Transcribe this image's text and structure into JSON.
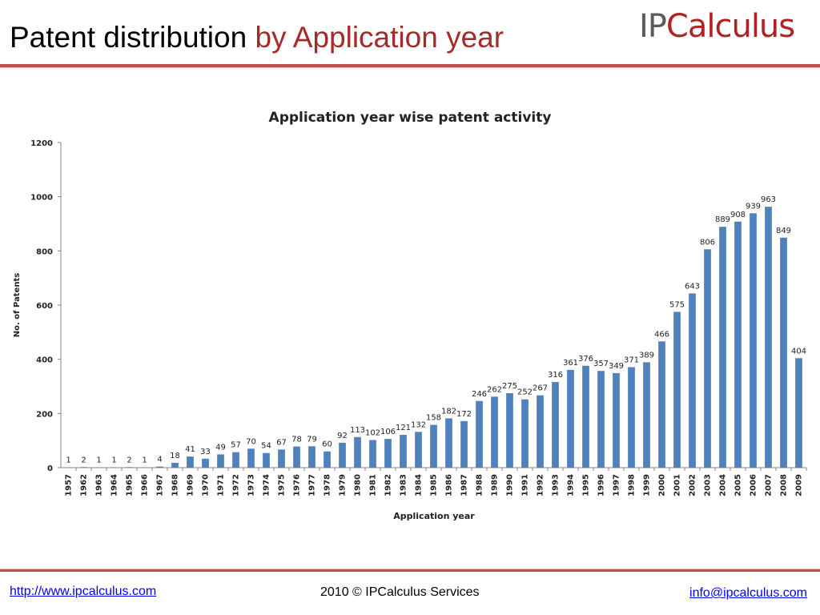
{
  "header": {
    "title_main": "Patent distribution",
    "title_accent": "by Application year",
    "logo_ip": "IP",
    "logo_rest": "Calculus"
  },
  "colors": {
    "accent": "#a52a2a",
    "rule": "#c0504d",
    "bar": "#4f81bd"
  },
  "chart_data": {
    "type": "bar",
    "title": "Application year wise patent activity",
    "xlabel": "Application year",
    "ylabel": "No. of Patents",
    "ylim": [
      0,
      1200
    ],
    "yticks": [
      0,
      200,
      400,
      600,
      800,
      1000,
      1200
    ],
    "grid": false,
    "categories": [
      "1957",
      "1962",
      "1963",
      "1964",
      "1965",
      "1966",
      "1967",
      "1968",
      "1969",
      "1970",
      "1971",
      "1972",
      "1973",
      "1974",
      "1975",
      "1976",
      "1977",
      "1978",
      "1979",
      "1980",
      "1981",
      "1982",
      "1983",
      "1984",
      "1985",
      "1986",
      "1987",
      "1988",
      "1989",
      "1990",
      "1991",
      "1992",
      "1993",
      "1994",
      "1995",
      "1996",
      "1997",
      "1998",
      "1999",
      "2000",
      "2001",
      "2002",
      "2003",
      "2004",
      "2005",
      "2006",
      "2007",
      "2008",
      "2009"
    ],
    "values": [
      1,
      2,
      1,
      1,
      2,
      1,
      4,
      18,
      41,
      33,
      49,
      57,
      70,
      54,
      67,
      78,
      79,
      60,
      92,
      113,
      102,
      106,
      121,
      132,
      158,
      182,
      172,
      246,
      262,
      275,
      252,
      267,
      316,
      361,
      376,
      357,
      349,
      371,
      389,
      466,
      575,
      643,
      806,
      889,
      908,
      939,
      963,
      849,
      404
    ]
  },
  "footer": {
    "website": "http://www.ipcalculus.com",
    "copyright": "2010 © IPCalculus Services",
    "email": "info@ipcalculus.com"
  }
}
